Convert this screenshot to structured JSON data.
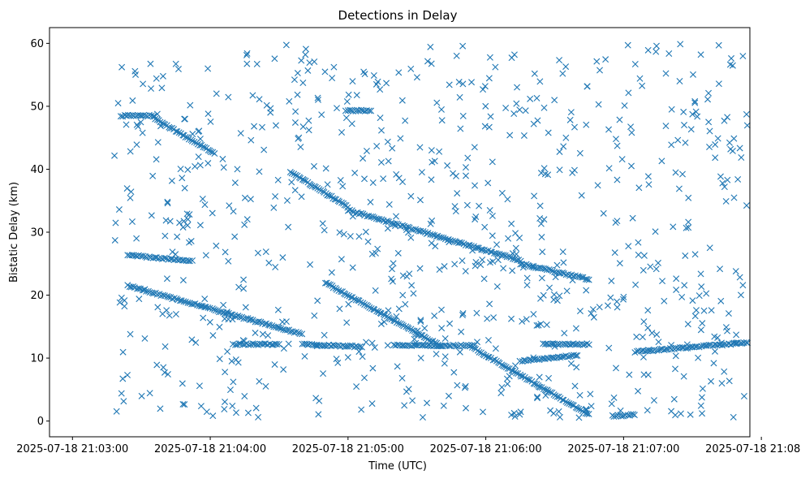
{
  "chart_data": {
    "type": "scatter",
    "title": "Detections in Delay",
    "xlabel": "Time (UTC)",
    "ylabel": "Bistatic Delay (km)",
    "marker": "x",
    "color": "#1f77b4",
    "grid": false,
    "x_start": "2025-07-18 21:02:50",
    "x_end": "2025-07-18 21:07:55",
    "ylim": [
      -2.5,
      62.5
    ],
    "x_ticks": [
      "2025-07-18 21:03:00",
      "2025-07-18 21:04:00",
      "2025-07-18 21:05:00",
      "2025-07-18 21:06:00",
      "2025-07-18 21:07:00",
      "2025-07-18 21:08:00"
    ],
    "y_ticks": [
      0,
      10,
      20,
      30,
      40,
      50,
      60
    ],
    "tracks": [
      {
        "from": [
          "2025-07-18 21:03:21",
          48.5
        ],
        "to": [
          "2025-07-18 21:03:36",
          48.5
        ]
      },
      {
        "from": [
          "2025-07-18 21:03:36",
          48.0
        ],
        "to": [
          "2025-07-18 21:04:02",
          42.5
        ]
      },
      {
        "from": [
          "2025-07-18 21:03:24",
          26.4
        ],
        "to": [
          "2025-07-18 21:03:52",
          25.4
        ]
      },
      {
        "from": [
          "2025-07-18 21:03:24",
          21.5
        ],
        "to": [
          "2025-07-18 21:04:40",
          13.8
        ]
      },
      {
        "from": [
          "2025-07-18 21:04:10",
          12.2
        ],
        "to": [
          "2025-07-18 21:04:30",
          12.2
        ]
      },
      {
        "from": [
          "2025-07-18 21:04:40",
          12.2
        ],
        "to": [
          "2025-07-18 21:05:06",
          11.8
        ]
      },
      {
        "from": [
          "2025-07-18 21:04:35",
          39.5
        ],
        "to": [
          "2025-07-18 21:05:00",
          34.0
        ]
      },
      {
        "from": [
          "2025-07-18 21:05:00",
          33.5
        ],
        "to": [
          "2025-07-18 21:06:15",
          25.5
        ]
      },
      {
        "from": [
          "2025-07-18 21:06:15",
          25.0
        ],
        "to": [
          "2025-07-18 21:06:45",
          22.5
        ]
      },
      {
        "from": [
          "2025-07-18 21:04:50",
          22.0
        ],
        "to": [
          "2025-07-18 21:05:40",
          12.0
        ]
      },
      {
        "from": [
          "2025-07-18 21:05:20",
          12.0
        ],
        "to": [
          "2025-07-18 21:05:55",
          12.0
        ]
      },
      {
        "from": [
          "2025-07-18 21:05:55",
          11.5
        ],
        "to": [
          "2025-07-18 21:06:45",
          1.0
        ]
      },
      {
        "from": [
          "2025-07-18 21:06:55",
          0.8
        ],
        "to": [
          "2025-07-18 21:07:05",
          1.0
        ]
      },
      {
        "from": [
          "2025-07-18 21:04:59",
          49.3
        ],
        "to": [
          "2025-07-18 21:05:10",
          49.3
        ]
      },
      {
        "from": [
          "2025-07-18 21:06:15",
          9.5
        ],
        "to": [
          "2025-07-18 21:06:40",
          10.5
        ]
      },
      {
        "from": [
          "2025-07-18 21:06:25",
          12.2
        ],
        "to": [
          "2025-07-18 21:06:45",
          12.2
        ]
      },
      {
        "from": [
          "2025-07-18 21:07:05",
          11.0
        ],
        "to": [
          "2025-07-18 21:07:55",
          12.5
        ]
      }
    ]
  }
}
